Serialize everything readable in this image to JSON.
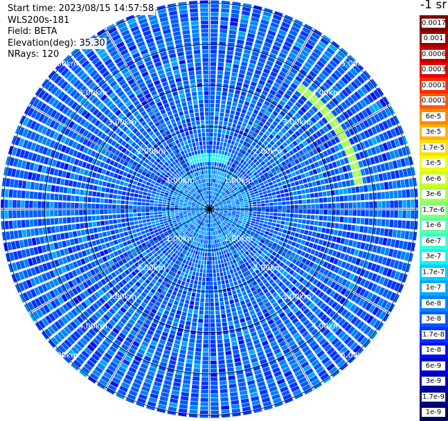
{
  "header": {
    "start_time": "Start time: 2023/08/15 14:57:58",
    "device": "WLS200s-181",
    "field": "Field: BETA",
    "elevation": "Elevation(deg): 35.30",
    "nrays": "NRays: 120"
  },
  "legend": {
    "unit": "-1 sr",
    "entries": [
      {
        "label": "0.0017",
        "color": "#7a0000"
      },
      {
        "label": "0.001",
        "color": "#9e0000"
      },
      {
        "label": "0.0006",
        "color": "#c20000"
      },
      {
        "label": "0.0003",
        "color": "#e80000"
      },
      {
        "label": "0.00017",
        "color": "#ff2a00"
      },
      {
        "label": "0.0001",
        "color": "#ff5a00"
      },
      {
        "label": "6e-5",
        "color": "#ff8a00"
      },
      {
        "label": "3e-5",
        "color": "#ffb400"
      },
      {
        "label": "1.7e-5",
        "color": "#ffde00"
      },
      {
        "label": "1e-5",
        "color": "#f0ff00"
      },
      {
        "label": "6e-6",
        "color": "#ccff1e"
      },
      {
        "label": "3e-6",
        "color": "#a8ff4e"
      },
      {
        "label": "1.7e-6",
        "color": "#84ff7a"
      },
      {
        "label": "1e-6",
        "color": "#5effa6"
      },
      {
        "label": "6e-7",
        "color": "#3cffd2"
      },
      {
        "label": "3e-7",
        "color": "#18f2f2"
      },
      {
        "label": "1.7e-7",
        "color": "#00d2ff"
      },
      {
        "label": "1e-7",
        "color": "#00aaff"
      },
      {
        "label": "6e-8",
        "color": "#0084ff"
      },
      {
        "label": "3e-8",
        "color": "#005cff"
      },
      {
        "label": "1.7e-8",
        "color": "#0034ff"
      },
      {
        "label": "1e-8",
        "color": "#0010f2"
      },
      {
        "label": "6e-9",
        "color": "#0000d2"
      },
      {
        "label": "3e-9",
        "color": "#0000aa"
      },
      {
        "label": "1.7e-9",
        "color": "#000084"
      },
      {
        "label": "1e-9",
        "color": "#00005e"
      }
    ]
  },
  "chart_data": {
    "type": "heatmap",
    "projection": "polar-ppi",
    "field": "BETA",
    "elevation_deg": 35.3,
    "n_rays": 120,
    "range_rings_km": [
      1,
      2,
      3,
      4,
      5
    ],
    "ring_labels": [
      "1.00km",
      "2.00km",
      "3.00km",
      "4.00km",
      "5.00km"
    ],
    "radial_lines_every_deg": 30,
    "colormap_unit": "-1 sr",
    "dominant_level": "3e-8",
    "features": [
      {
        "description": "enhanced backscatter arc",
        "azimuth_deg": [
          35,
          80
        ],
        "range_km": 3.7,
        "level": "3e-6"
      },
      {
        "description": "enhanced backscatter arc",
        "azimuth_deg": [
          335,
          20
        ],
        "range_km": 1.25,
        "level": "3e-7"
      }
    ],
    "colors": {
      "background": "#ffffff",
      "ring": "#000000",
      "label": "#ffffff"
    }
  }
}
